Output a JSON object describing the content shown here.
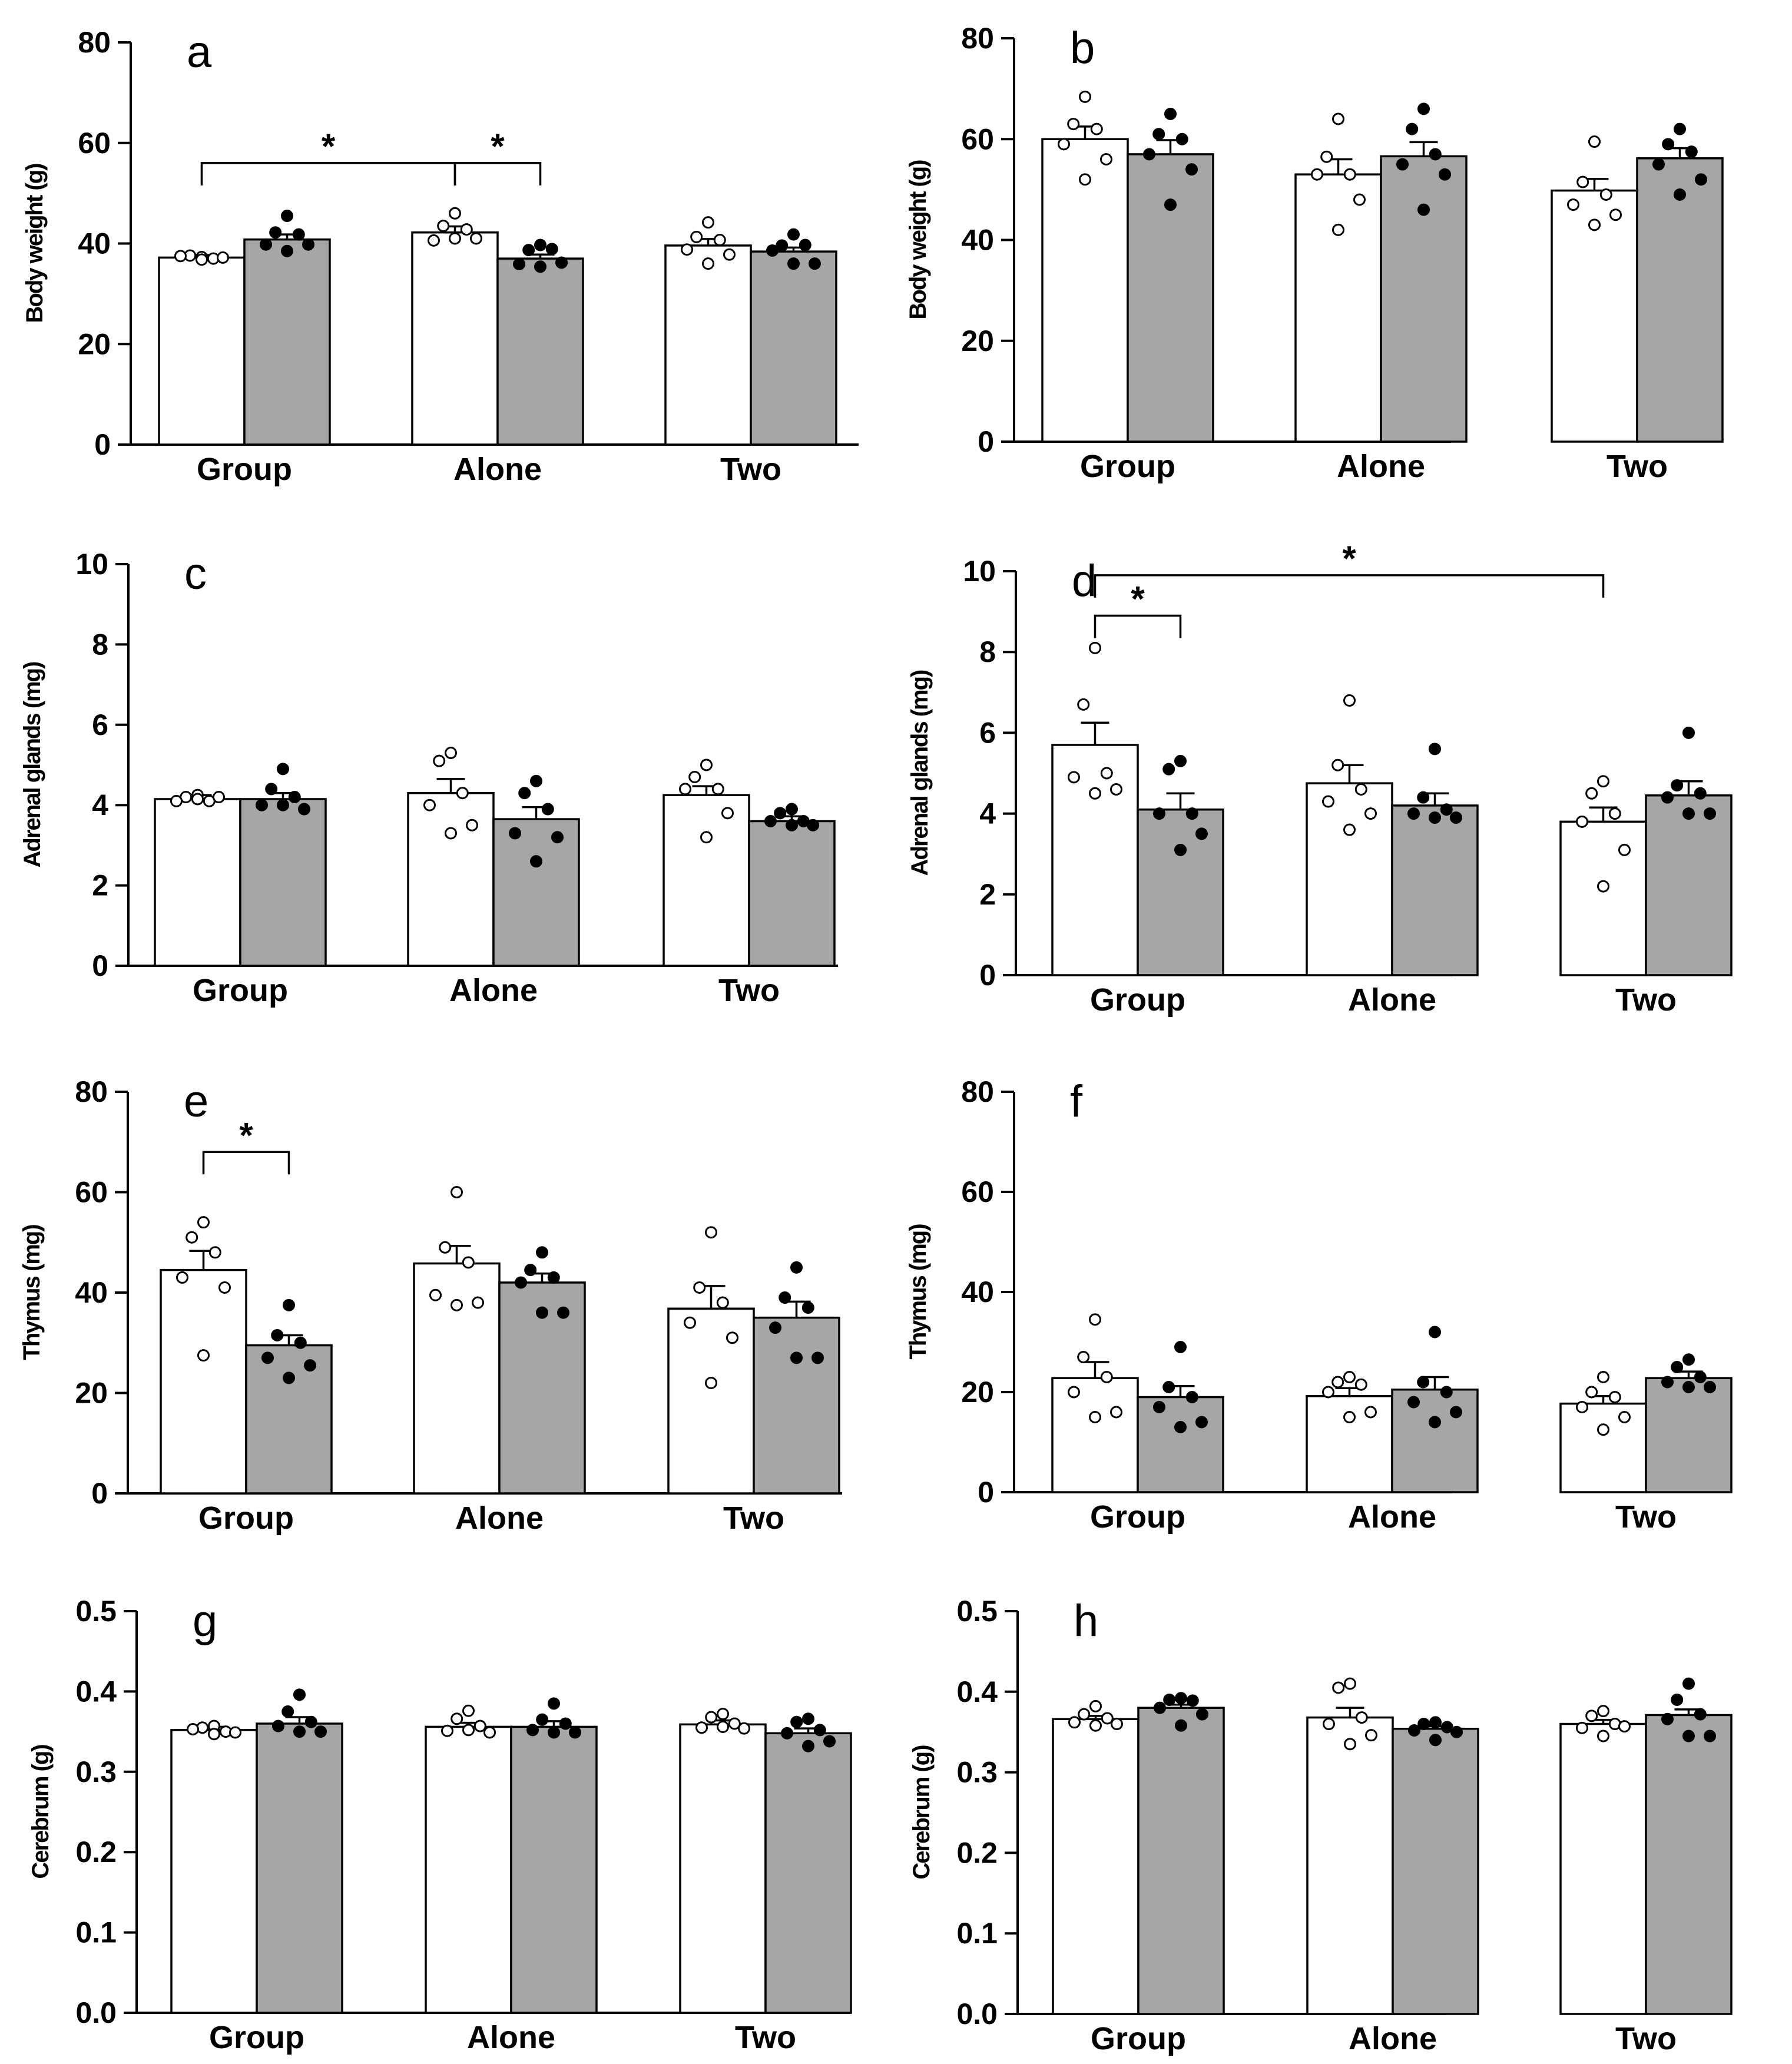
{
  "colors": {
    "control_bar": "#ffffff",
    "treated_bar": "#a6a6a6",
    "axis": "#000000"
  },
  "chart_data": [
    {
      "id": "a",
      "type": "bar",
      "panel_label": "a",
      "ylabel": "Body weight (g)",
      "categories": [
        "Group",
        "Alone",
        "Two"
      ],
      "ylim": [
        0,
        80
      ],
      "yticks": [
        0,
        20,
        40,
        60,
        80
      ],
      "ytick_labels": [
        "0",
        "20",
        "40",
        "60",
        "80"
      ],
      "series": [
        {
          "name": "open",
          "values": [
            37.2,
            42.2,
            39.6
          ],
          "errors": [
            0.5,
            1.2,
            1.3
          ],
          "points": [
            [
              37.3,
              37.6,
              37.0,
              37.5,
              37.2,
              36.8
            ],
            [
              46.0,
              43.5,
              42.8,
              40.6,
              41.0,
              41.0
            ],
            [
              44.2,
              41.3,
              40.7,
              38.8,
              37.8,
              36.0
            ]
          ]
        },
        {
          "name": "filled",
          "values": [
            40.8,
            37.0,
            38.4
          ],
          "errors": [
            1.0,
            0.8,
            0.8
          ],
          "points": [
            [
              45.5,
              42.2,
              41.8,
              39.8,
              39.8,
              38.5
            ],
            [
              39.7,
              38.7,
              38.9,
              35.9,
              36.2,
              35.4
            ],
            [
              41.8,
              39.6,
              39.7,
              38.6,
              36.0,
              36.0
            ]
          ]
        }
      ],
      "annotations": [
        {
          "from": [
            0,
            0
          ],
          "to": [
            1,
            0
          ],
          "y": 56,
          "label": "*"
        },
        {
          "from": [
            1,
            0
          ],
          "to": [
            1,
            1
          ],
          "y": 56,
          "label": "*"
        }
      ]
    },
    {
      "id": "b",
      "type": "bar",
      "panel_label": "b",
      "ylabel": "Body weight (g)",
      "categories": [
        "Group",
        "Alone",
        "Two"
      ],
      "ylim": [
        0,
        80
      ],
      "yticks": [
        0,
        20,
        40,
        60,
        80
      ],
      "ytick_labels": [
        "0",
        "20",
        "40",
        "60",
        "80"
      ],
      "series": [
        {
          "name": "open",
          "values": [
            60.0,
            53.0,
            49.8
          ],
          "errors": [
            2.5,
            3.0,
            2.3
          ],
          "points": [
            [
              68.4,
              63.0,
              62.0,
              59.0,
              56.0,
              52.0
            ],
            [
              64.0,
              56.5,
              53.0,
              53.0,
              48.0,
              42.0
            ],
            [
              59.5,
              51.5,
              49.0,
              47.0,
              45.0,
              43.0
            ]
          ]
        },
        {
          "name": "filled",
          "values": [
            57.0,
            56.6,
            56.2
          ],
          "errors": [
            2.8,
            2.8,
            2.0
          ],
          "points": [
            [
              65.0,
              61.0,
              60.0,
              57.0,
              54.0,
              47.0
            ],
            [
              66.0,
              62.0,
              57.0,
              55.0,
              53.0,
              46.0
            ],
            [
              62.0,
              59.0,
              57.5,
              55.0,
              52.0,
              49.0
            ]
          ]
        }
      ],
      "annotations": []
    },
    {
      "id": "c",
      "type": "bar",
      "panel_label": "c",
      "ylabel": "Adrenal glands (mg)",
      "categories": [
        "Group",
        "Alone",
        "Two"
      ],
      "ylim": [
        0,
        10
      ],
      "yticks": [
        0,
        2,
        4,
        6,
        8,
        10
      ],
      "ytick_labels": [
        "0",
        "2",
        "4",
        "6",
        "8",
        "10"
      ],
      "series": [
        {
          "name": "open",
          "values": [
            4.15,
            4.3,
            4.25
          ],
          "errors": [
            0.1,
            0.35,
            0.22
          ],
          "points": [
            [
              4.25,
              4.2,
              4.1,
              4.1,
              4.2,
              4.15
            ],
            [
              5.3,
              5.1,
              4.3,
              4.0,
              3.5,
              3.3
            ],
            [
              5.0,
              4.7,
              4.4,
              4.4,
              3.8,
              3.2
            ]
          ]
        },
        {
          "name": "filled",
          "values": [
            4.15,
            3.65,
            3.6
          ],
          "errors": [
            0.15,
            0.3,
            0.12
          ],
          "points": [
            [
              4.9,
              4.4,
              4.2,
              4.0,
              3.9,
              4.0
            ],
            [
              4.6,
              4.3,
              3.9,
              3.3,
              3.2,
              2.6
            ],
            [
              3.9,
              3.8,
              3.6,
              3.6,
              3.5,
              3.5
            ]
          ]
        }
      ],
      "annotations": []
    },
    {
      "id": "d",
      "type": "bar",
      "panel_label": "d",
      "ylabel": "Adrenal glands (mg)",
      "categories": [
        "Group",
        "Alone",
        "Two"
      ],
      "ylim": [
        0,
        10
      ],
      "yticks": [
        0,
        2,
        4,
        6,
        8,
        10
      ],
      "ytick_labels": [
        "0",
        "2",
        "4",
        "6",
        "8",
        "10"
      ],
      "series": [
        {
          "name": "open",
          "values": [
            5.7,
            4.75,
            3.8
          ],
          "errors": [
            0.55,
            0.45,
            0.35
          ],
          "points": [
            [
              8.1,
              6.7,
              5.0,
              4.9,
              4.6,
              4.5
            ],
            [
              6.8,
              5.2,
              4.6,
              4.3,
              4.0,
              3.6
            ],
            [
              4.8,
              4.5,
              4.0,
              3.8,
              3.1,
              2.2
            ]
          ]
        },
        {
          "name": "filled",
          "values": [
            4.1,
            4.2,
            4.45
          ],
          "errors": [
            0.4,
            0.3,
            0.35
          ],
          "points": [
            [
              5.3,
              5.1,
              4.0,
              4.0,
              3.5,
              3.1
            ],
            [
              5.6,
              4.4,
              4.1,
              4.0,
              3.9,
              3.9
            ],
            [
              6.0,
              4.7,
              4.5,
              4.4,
              4.0,
              4.0
            ]
          ]
        }
      ],
      "annotations": [
        {
          "from": [
            0,
            0
          ],
          "to": [
            0,
            1
          ],
          "y": 8.9,
          "label": "*"
        },
        {
          "from": [
            0,
            0
          ],
          "to": [
            2,
            0
          ],
          "y": 9.9,
          "label": "*"
        }
      ]
    },
    {
      "id": "e",
      "type": "bar",
      "panel_label": "e",
      "ylabel": "Thymus (mg)",
      "categories": [
        "Group",
        "Alone",
        "Two"
      ],
      "ylim": [
        0,
        80
      ],
      "yticks": [
        0,
        20,
        40,
        60,
        80
      ],
      "ytick_labels": [
        "0",
        "20",
        "40",
        "60",
        "80"
      ],
      "series": [
        {
          "name": "open",
          "values": [
            44.5,
            45.8,
            36.8
          ],
          "errors": [
            3.8,
            3.5,
            4.5
          ],
          "points": [
            [
              54.0,
              51.0,
              48.0,
              43.0,
              41.0,
              27.5
            ],
            [
              60.0,
              49.0,
              46.0,
              39.5,
              38.0,
              37.5
            ],
            [
              52.0,
              41.0,
              38.0,
              34.0,
              31.0,
              22.0
            ]
          ]
        },
        {
          "name": "filled",
          "values": [
            29.5,
            42.0,
            35.0
          ],
          "errors": [
            2.0,
            1.8,
            3.2
          ],
          "points": [
            [
              37.5,
              31.5,
              30.0,
              27.0,
              25.5,
              23.0
            ],
            [
              48.0,
              44.5,
              43.0,
              42.0,
              36.0,
              36.0
            ],
            [
              45.0,
              39.0,
              37.0,
              33.0,
              27.0,
              27.0
            ]
          ]
        }
      ],
      "annotations": [
        {
          "from": [
            0,
            0
          ],
          "to": [
            0,
            1
          ],
          "y": 68,
          "label": "*"
        }
      ]
    },
    {
      "id": "f",
      "type": "bar",
      "panel_label": "f",
      "ylabel": "Thymus (mg)",
      "categories": [
        "Group",
        "Alone",
        "Two"
      ],
      "ylim": [
        0,
        80
      ],
      "yticks": [
        0,
        20,
        40,
        60,
        80
      ],
      "ytick_labels": [
        "0",
        "20",
        "40",
        "60",
        "80"
      ],
      "series": [
        {
          "name": "open",
          "values": [
            22.8,
            19.2,
            17.7
          ],
          "errors": [
            3.2,
            1.6,
            1.5
          ],
          "points": [
            [
              34.5,
              27.0,
              23.0,
              20.0,
              16.0,
              15.0
            ],
            [
              23.0,
              22.0,
              21.5,
              20.0,
              16.0,
              15.0
            ],
            [
              23.0,
              20.0,
              19.0,
              17.0,
              15.0,
              12.5
            ]
          ]
        },
        {
          "name": "filled",
          "values": [
            19.0,
            20.5,
            22.8
          ],
          "errors": [
            2.2,
            2.5,
            1.3
          ],
          "points": [
            [
              29.0,
              21.0,
              19.0,
              17.0,
              14.0,
              13.0
            ],
            [
              32.0,
              22.0,
              20.0,
              18.0,
              16.0,
              14.0
            ],
            [
              26.5,
              25.0,
              23.0,
              22.0,
              21.0,
              21.0
            ]
          ]
        }
      ],
      "annotations": []
    },
    {
      "id": "g",
      "type": "bar",
      "panel_label": "g",
      "ylabel": "Cerebrum (g)",
      "categories": [
        "Group",
        "Alone",
        "Two"
      ],
      "ylim": [
        0,
        0.5
      ],
      "yticks": [
        0,
        0.1,
        0.2,
        0.3,
        0.4,
        0.5
      ],
      "ytick_labels": [
        "0.0",
        "0.1",
        "0.2",
        "0.3",
        "0.4",
        "0.5"
      ],
      "series": [
        {
          "name": "open",
          "values": [
            0.352,
            0.356,
            0.359
          ],
          "errors": [
            0.004,
            0.005,
            0.005
          ],
          "points": [
            [
              0.357,
              0.355,
              0.35,
              0.353,
              0.349,
              0.347
            ],
            [
              0.376,
              0.366,
              0.357,
              0.351,
              0.349,
              0.352
            ],
            [
              0.372,
              0.368,
              0.36,
              0.355,
              0.354,
              0.356
            ]
          ]
        },
        {
          "name": "filled",
          "values": [
            0.36,
            0.356,
            0.348
          ],
          "errors": [
            0.008,
            0.007,
            0.006
          ],
          "points": [
            [
              0.396,
              0.375,
              0.362,
              0.357,
              0.35,
              0.35
            ],
            [
              0.385,
              0.365,
              0.36,
              0.352,
              0.349,
              0.349
            ],
            [
              0.366,
              0.362,
              0.352,
              0.348,
              0.338,
              0.332
            ]
          ]
        }
      ],
      "annotations": []
    },
    {
      "id": "h",
      "type": "bar",
      "panel_label": "h",
      "ylabel": "Cerebrum (g)",
      "categories": [
        "Group",
        "Alone",
        "Two"
      ],
      "ylim": [
        0,
        0.5
      ],
      "yticks": [
        0,
        0.1,
        0.2,
        0.3,
        0.4,
        0.5
      ],
      "ytick_labels": [
        "0.0",
        "0.1",
        "0.2",
        "0.3",
        "0.4",
        "0.5"
      ],
      "series": [
        {
          "name": "open",
          "values": [
            0.366,
            0.368,
            0.36
          ],
          "errors": [
            0.004,
            0.012,
            0.005
          ],
          "points": [
            [
              0.382,
              0.372,
              0.367,
              0.362,
              0.36,
              0.358
            ],
            [
              0.41,
              0.405,
              0.368,
              0.36,
              0.346,
              0.335
            ],
            [
              0.376,
              0.37,
              0.36,
              0.355,
              0.357,
              0.345
            ]
          ]
        },
        {
          "name": "filled",
          "values": [
            0.38,
            0.354,
            0.371
          ],
          "errors": [
            0.004,
            0.003,
            0.007
          ],
          "points": [
            [
              0.392,
              0.39,
              0.389,
              0.38,
              0.372,
              0.358
            ],
            [
              0.362,
              0.36,
              0.356,
              0.352,
              0.35,
              0.34
            ],
            [
              0.41,
              0.39,
              0.372,
              0.366,
              0.345,
              0.345
            ]
          ]
        }
      ],
      "annotations": []
    }
  ]
}
